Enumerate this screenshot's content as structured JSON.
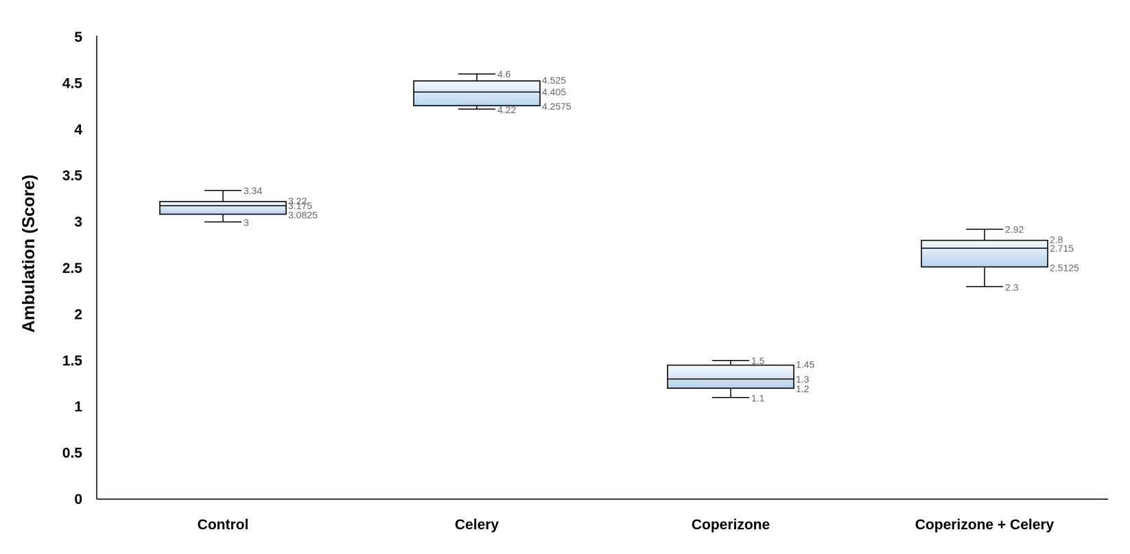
{
  "chart_data": {
    "type": "box",
    "title": "",
    "xlabel": "",
    "ylabel": "Ambulation (Score)",
    "ylim": [
      0,
      5
    ],
    "yticks": [
      "0",
      "0.5",
      "1",
      "1.5",
      "2",
      "2.5",
      "3",
      "3.5",
      "4",
      "4.5",
      "5"
    ],
    "grid": false,
    "legend": "none",
    "categories": [
      "Control",
      "Celery",
      "Coperizone",
      "Coperizone + Celery"
    ],
    "boxes": [
      {
        "category": "Control",
        "min": 3,
        "q1": 3.0825,
        "median": 3.175,
        "q3": 3.22,
        "max": 3.34,
        "labels": {
          "min": "3",
          "q1": "3.0825",
          "median": "3.175",
          "q3": "3.22",
          "max": "3.34"
        }
      },
      {
        "category": "Celery",
        "min": 4.22,
        "q1": 4.2575,
        "median": 4.405,
        "q3": 4.525,
        "max": 4.6,
        "labels": {
          "min": "4.22",
          "q1": "4.2575",
          "median": "4.405",
          "q3": "4.525",
          "max": "4.6"
        }
      },
      {
        "category": "Coperizone",
        "min": 1.1,
        "q1": 1.2,
        "median": 1.3,
        "q3": 1.45,
        "max": 1.5,
        "labels": {
          "min": "1.1",
          "q1": "1.2",
          "median": "1.3",
          "q3": "1.45",
          "max": "1.5"
        }
      },
      {
        "category": "Coperizone + Celery",
        "min": 2.3,
        "q1": 2.5125,
        "median": 2.715,
        "q3": 2.8,
        "max": 2.92,
        "labels": {
          "min": "2.3",
          "q1": "2.5125",
          "median": "2.715",
          "q3": "2.8",
          "max": "2.92"
        }
      }
    ],
    "colors": {
      "box_fill_top": "#f5f9fd",
      "box_fill_bottom": "#b8d2ec",
      "box_stroke": "#000000",
      "axis": "#000000",
      "label_text": "#666666"
    }
  }
}
